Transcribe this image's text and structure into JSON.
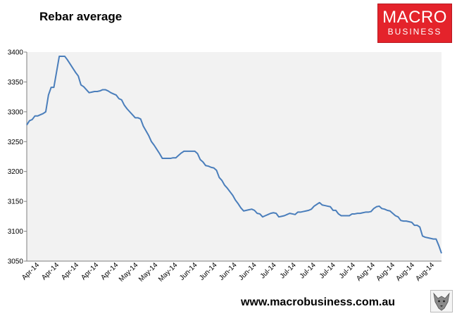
{
  "title": "Rebar average",
  "logo": {
    "line1": "MACRO",
    "line2": "BUSINESS",
    "color": "#e4232b"
  },
  "source_url": "www.macrobusiness.com.au",
  "mascot": "wolf-icon",
  "chart_data": {
    "type": "line",
    "title": "Rebar average",
    "xlabel": "",
    "ylabel": "",
    "ylim": [
      3050,
      3400
    ],
    "yticks": [
      3050,
      3100,
      3150,
      3200,
      3250,
      3300,
      3350,
      3400
    ],
    "x_tick_labels": [
      "Apr-14",
      "Apr-14",
      "Apr-14",
      "Apr-14",
      "Apr-14",
      "May-14",
      "May-14",
      "May-14",
      "Jun-14",
      "Jun-14",
      "Jun-14",
      "Jun-14",
      "Jul-14",
      "Jul-14",
      "Jul-14",
      "Jul-14",
      "Jul-14",
      "Aug-14",
      "Aug-14",
      "Aug-14",
      "Aug-14"
    ],
    "grid": false,
    "legend": "none",
    "line_color": "#4a7ebb",
    "plot_background": "#f2f2f2",
    "values": [
      3278,
      3285,
      3287,
      3293,
      3293,
      3295,
      3297,
      3300,
      3328,
      3341,
      3341,
      3367,
      3393,
      3393,
      3393,
      3387,
      3380,
      3373,
      3366,
      3360,
      3345,
      3342,
      3337,
      3332,
      3333,
      3334,
      3334,
      3335,
      3337,
      3337,
      3335,
      3332,
      3330,
      3328,
      3322,
      3320,
      3311,
      3305,
      3300,
      3295,
      3290,
      3290,
      3288,
      3276,
      3268,
      3260,
      3250,
      3244,
      3237,
      3230,
      3222,
      3222,
      3222,
      3222,
      3223,
      3223,
      3227,
      3231,
      3234,
      3234,
      3234,
      3234,
      3234,
      3230,
      3220,
      3216,
      3210,
      3209,
      3207,
      3206,
      3202,
      3190,
      3185,
      3177,
      3172,
      3166,
      3160,
      3152,
      3146,
      3139,
      3134,
      3135,
      3136,
      3137,
      3135,
      3130,
      3129,
      3124,
      3126,
      3128,
      3130,
      3131,
      3130,
      3124,
      3125,
      3126,
      3128,
      3130,
      3129,
      3128,
      3132,
      3132,
      3133,
      3134,
      3135,
      3137,
      3142,
      3145,
      3148,
      3144,
      3143,
      3142,
      3141,
      3135,
      3135,
      3129,
      3126,
      3126,
      3126,
      3126,
      3129,
      3129,
      3130,
      3130,
      3131,
      3132,
      3132,
      3133,
      3138,
      3141,
      3142,
      3138,
      3137,
      3135,
      3134,
      3130,
      3126,
      3124,
      3118,
      3117,
      3117,
      3116,
      3115,
      3110,
      3110,
      3107,
      3092,
      3090,
      3089,
      3088,
      3087,
      3087,
      3076,
      3063
    ]
  }
}
